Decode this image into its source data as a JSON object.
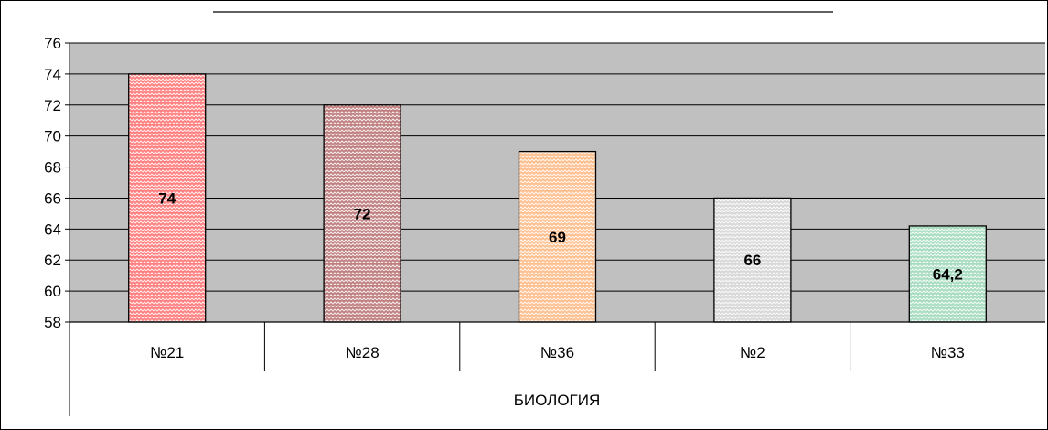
{
  "chart_data": {
    "type": "bar",
    "title": "",
    "categories": [
      "№21",
      "№28",
      "№36",
      "№2",
      "№33"
    ],
    "group_label": "БИОЛОГИЯ",
    "values": [
      74,
      72,
      69,
      66,
      64.2
    ],
    "value_labels": [
      "74",
      "72",
      "69",
      "66",
      "64,2"
    ],
    "ylim": [
      58,
      76
    ],
    "yticks": [
      58,
      60,
      62,
      64,
      66,
      68,
      70,
      72,
      74,
      76
    ],
    "grid": true,
    "legend": "none",
    "xlabel": "",
    "ylabel": ""
  },
  "colors": {
    "plot_background": "#c0c0c0",
    "gridline": "#000000",
    "bar_fills": [
      "#ff8080",
      "#c08080",
      "#ffc090",
      "#d8d8d8",
      "#a8dcc0"
    ],
    "bar_pattern_light": "#ffffff",
    "bar_outline": "#000000"
  }
}
